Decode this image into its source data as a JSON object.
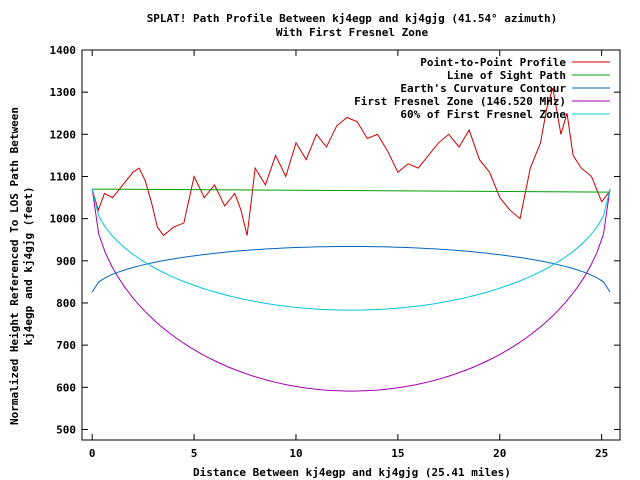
{
  "chart_data": {
    "type": "line",
    "title": "SPLAT! Path Profile Between kj4egp and kj4gjg (41.54° azimuth)",
    "subtitle": "With First Fresnel Zone",
    "xlabel": "Distance Between kj4egp and kj4gjg (25.41 miles)",
    "ylabel_line1": "Normalized Height Referenced To LOS Path Between",
    "ylabel_line2": "kj4egp and kj4gjg (feet)",
    "xlim": [
      -0.5,
      25.9
    ],
    "ylim": [
      475,
      1400
    ],
    "xticks": [
      0,
      5,
      10,
      15,
      20,
      25
    ],
    "yticks": [
      500,
      600,
      700,
      800,
      900,
      1000,
      1100,
      1200,
      1300,
      1400
    ],
    "grid": false,
    "legend_position": "top-right",
    "series": [
      {
        "name": "Point-to-Point Profile",
        "color": "#cc0000",
        "x": [
          0,
          0.3,
          0.6,
          1.0,
          1.5,
          2.0,
          2.3,
          2.6,
          2.9,
          3.2,
          3.5,
          4.0,
          4.5,
          5.0,
          5.5,
          6.0,
          6.5,
          7.0,
          7.3,
          7.6,
          8.0,
          8.5,
          9.0,
          9.5,
          10.0,
          10.5,
          11.0,
          11.5,
          12.0,
          12.5,
          13.0,
          13.5,
          14.0,
          14.5,
          15.0,
          15.5,
          16.0,
          16.5,
          17.0,
          17.5,
          18.0,
          18.5,
          19.0,
          19.5,
          20.0,
          20.5,
          21.0,
          21.5,
          22.0,
          22.3,
          22.6,
          23.0,
          23.3,
          23.6,
          24.0,
          24.5,
          25.0,
          25.4
        ],
        "y": [
          1070,
          1020,
          1060,
          1050,
          1080,
          1110,
          1120,
          1090,
          1040,
          980,
          960,
          980,
          990,
          1100,
          1050,
          1080,
          1030,
          1060,
          1020,
          960,
          1120,
          1080,
          1150,
          1100,
          1180,
          1140,
          1200,
          1170,
          1220,
          1240,
          1230,
          1190,
          1200,
          1160,
          1110,
          1130,
          1120,
          1150,
          1180,
          1200,
          1170,
          1210,
          1140,
          1110,
          1050,
          1020,
          1000,
          1120,
          1180,
          1260,
          1310,
          1200,
          1250,
          1150,
          1120,
          1100,
          1040,
          1065
        ]
      },
      {
        "name": "Line of Sight Path",
        "color": "#00a000",
        "x": [
          0,
          25.41
        ],
        "y": [
          1070,
          1063
        ]
      },
      {
        "name": "Earth's Curvature Contour",
        "color": "#0066bb",
        "curve": {
          "end_y": 826,
          "mid_y": 934
        }
      },
      {
        "name": "First Fresnel Zone (146.520 MHz)",
        "color": "#a000b0",
        "curve": {
          "end_y": 1070,
          "mid_y": 591
        }
      },
      {
        "name": "60% of First Fresnel Zone",
        "color": "#00c8d8",
        "curve": {
          "end_y": 1070,
          "mid_y": 783
        }
      }
    ]
  }
}
